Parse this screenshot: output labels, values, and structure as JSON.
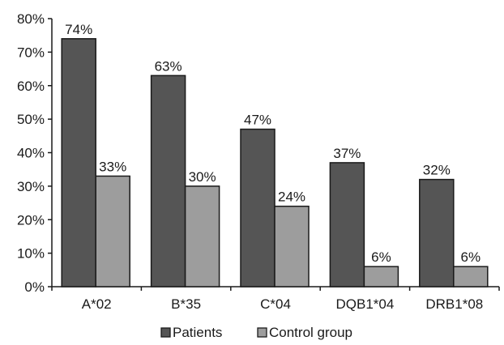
{
  "chart_data": {
    "type": "bar",
    "categories": [
      "A*02",
      "B*35",
      "C*04",
      "DQB1*04",
      "DRB1*08"
    ],
    "series": [
      {
        "name": "Patients",
        "values": [
          74,
          63,
          47,
          37,
          32
        ],
        "labels": [
          "74%",
          "63%",
          "47%",
          "37%",
          "32%"
        ],
        "color": "#555555"
      },
      {
        "name": "Control group",
        "values": [
          33,
          30,
          24,
          6,
          6
        ],
        "labels": [
          "33%",
          "30%",
          "24%",
          "6%",
          "6%"
        ],
        "color": "#9d9d9d"
      }
    ],
    "yticks": [
      "0%",
      "10%",
      "20%",
      "30%",
      "40%",
      "50%",
      "60%",
      "70%",
      "80%"
    ],
    "ylim": [
      0,
      80
    ],
    "grid": false,
    "legend_position": "bottom",
    "title": "",
    "xlabel": "",
    "ylabel": ""
  }
}
